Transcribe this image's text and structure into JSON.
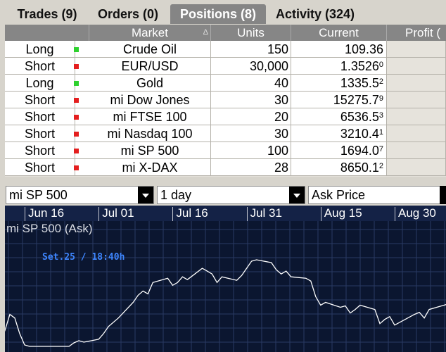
{
  "tabs": [
    {
      "label": "Trades (9)",
      "active": false
    },
    {
      "label": "Orders (0)",
      "active": false
    },
    {
      "label": "Positions (8)",
      "active": true
    },
    {
      "label": "Activity (324)",
      "active": false
    }
  ],
  "grid": {
    "columns": {
      "market": "Market",
      "sort_indicator": "Δ",
      "units": "Units",
      "current": "Current",
      "profit": "Profit ("
    },
    "rows": [
      {
        "side": "Long",
        "status": "green",
        "market": "Crude Oil",
        "units": "150",
        "current": "109.36",
        "sup": ""
      },
      {
        "side": "Short",
        "status": "red",
        "market": "EUR/USD",
        "units": "30,000",
        "current": "1.3526",
        "sup": "0"
      },
      {
        "side": "Long",
        "status": "green",
        "market": "Gold",
        "units": "40",
        "current": "1335.5",
        "sup": "2"
      },
      {
        "side": "Short",
        "status": "red",
        "market": "mi Dow Jones",
        "units": "30",
        "current": "15275.7",
        "sup": "9"
      },
      {
        "side": "Short",
        "status": "red",
        "market": "mi FTSE 100",
        "units": "20",
        "current": "6536.5",
        "sup": "3"
      },
      {
        "side": "Short",
        "status": "red",
        "market": "mi Nasdaq 100",
        "units": "30",
        "current": "3210.4",
        "sup": "1"
      },
      {
        "side": "Short",
        "status": "red",
        "market": "mi SP 500",
        "units": "100",
        "current": "1694.0",
        "sup": "7"
      },
      {
        "side": "Short",
        "status": "red",
        "market": "mi X-DAX",
        "units": "28",
        "current": "8650.1",
        "sup": "2"
      }
    ]
  },
  "selectors": {
    "instrument": "mi SP 500",
    "period": "1 day",
    "price_type": "Ask Price"
  },
  "chart": {
    "title": "mi SP 500 (Ask)",
    "cursor_label": "Set.25 / 18:40h",
    "colors": {
      "background": "#0b1630",
      "grid": "#2a3a63",
      "line": "#ffffff",
      "cursor_label": "#3e86ff"
    }
  },
  "chart_data": {
    "type": "line",
    "title": "mi SP 500 (Ask)",
    "x_ticks": [
      "Jun 16",
      "Jul 01",
      "Jul 16",
      "Jul 31",
      "Aug 15",
      "Aug 30"
    ],
    "series": [
      {
        "name": "mi SP 500 (Ask)",
        "points": [
          [
            "Jun 10",
            0.05
          ],
          [
            "Jun 11",
            0.25
          ],
          [
            "Jun 12",
            0.22
          ],
          [
            "Jun 13",
            0.45
          ],
          [
            "Jun 14",
            0.4
          ],
          [
            "Jun 15",
            0.18
          ],
          [
            "Jun 16",
            0.02
          ],
          [
            "Jun 17",
            0.0
          ],
          [
            "Jun 18",
            0.0
          ],
          [
            "Jun 19",
            0.0
          ],
          [
            "Jun 20",
            0.0
          ],
          [
            "Jun 21",
            0.0
          ],
          [
            "Jun 24",
            0.0
          ],
          [
            "Jun 25",
            0.0
          ],
          [
            "Jun 26",
            0.05
          ],
          [
            "Jun 27",
            0.08
          ],
          [
            "Jun 28",
            0.06
          ],
          [
            "Jul 01",
            0.1
          ],
          [
            "Jul 02",
            0.18
          ],
          [
            "Jul 03",
            0.28
          ],
          [
            "Jul 05",
            0.4
          ],
          [
            "Jul 08",
            0.62
          ],
          [
            "Jul 09",
            0.72
          ],
          [
            "Jul 10",
            0.78
          ],
          [
            "Jul 11",
            0.74
          ],
          [
            "Jul 12",
            0.9
          ],
          [
            "Jul 15",
            0.96
          ],
          [
            "Jul 16",
            0.86
          ],
          [
            "Jul 17",
            0.9
          ],
          [
            "Jul 18",
            0.98
          ],
          [
            "Jul 19",
            0.94
          ],
          [
            "Jul 22",
            1.1
          ],
          [
            "Jul 23",
            1.06
          ],
          [
            "Jul 24",
            1.02
          ],
          [
            "Jul 25",
            0.9
          ],
          [
            "Jul 26",
            0.98
          ],
          [
            "Jul 29",
            0.93
          ],
          [
            "Jul 30",
            1.0
          ],
          [
            "Jul 31",
            1.1
          ],
          [
            "Aug 01",
            1.2
          ],
          [
            "Aug 02",
            1.22
          ],
          [
            "Aug 05",
            1.18
          ],
          [
            "Aug 06",
            1.08
          ],
          [
            "Aug 07",
            1.02
          ],
          [
            "Aug 08",
            1.06
          ],
          [
            "Aug 09",
            0.98
          ],
          [
            "Aug 12",
            0.96
          ],
          [
            "Aug 13",
            0.92
          ],
          [
            "Aug 14",
            0.7
          ],
          [
            "Aug 15",
            0.58
          ],
          [
            "Aug 16",
            0.62
          ],
          [
            "Aug 19",
            0.55
          ],
          [
            "Aug 20",
            0.57
          ],
          [
            "Aug 21",
            0.47
          ],
          [
            "Aug 22",
            0.52
          ],
          [
            "Aug 23",
            0.58
          ],
          [
            "Aug 26",
            0.52
          ],
          [
            "Aug 27",
            0.32
          ],
          [
            "Aug 28",
            0.38
          ],
          [
            "Aug 29",
            0.42
          ],
          [
            "Aug 30",
            0.3
          ],
          [
            "Sep 03",
            0.45
          ],
          [
            "Sep 04",
            0.48
          ],
          [
            "Sep 05",
            0.4
          ],
          [
            "Sep 06",
            0.52
          ],
          [
            "Sep 09",
            0.58
          ],
          [
            "Sep 10",
            0.6
          ],
          [
            "Sep 11",
            0.58
          ],
          [
            "Sep 12",
            0.62
          ]
        ]
      }
    ],
    "y_scale": "relative (unlabelled)",
    "grid": true,
    "legend": "none"
  }
}
